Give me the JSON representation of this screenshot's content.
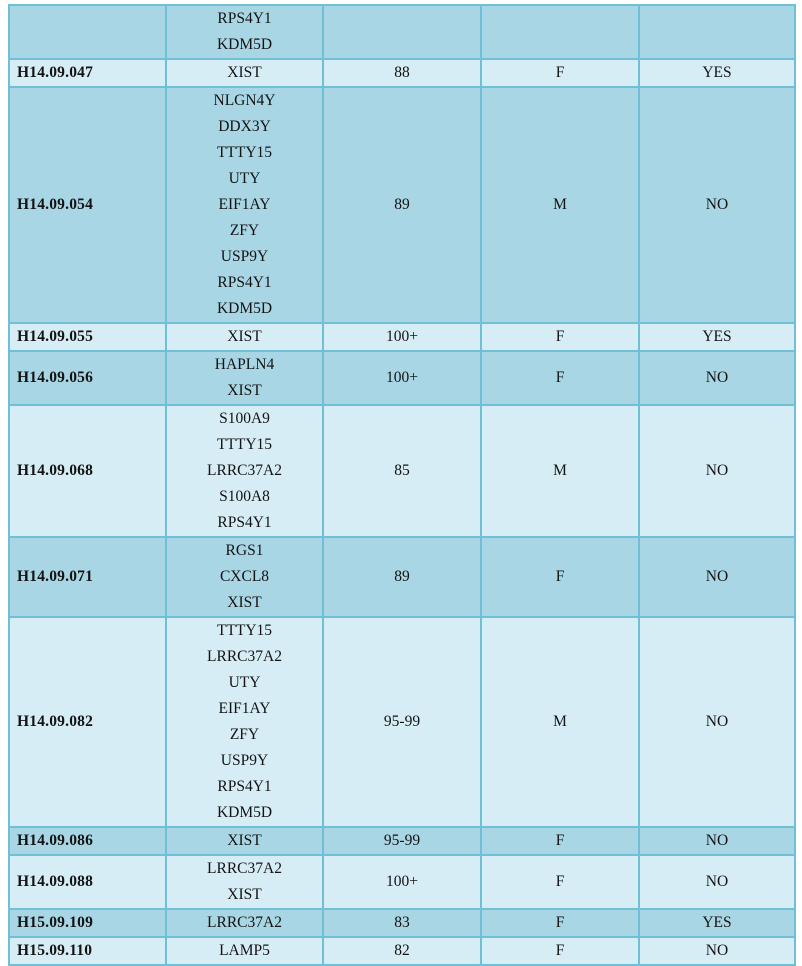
{
  "colors": {
    "row_dark": "#a9d6e4",
    "row_light": "#d6edf5",
    "border": "#6fc0d6",
    "text": "#131313"
  },
  "table": {
    "rows": [
      {
        "id": "",
        "genes": [
          "RPS4Y1",
          "KDM5D"
        ],
        "value": "",
        "sex": "",
        "status": "",
        "shade": "dark",
        "partial": "top"
      },
      {
        "id": "H14.09.047",
        "genes": [
          "XIST"
        ],
        "value": "88",
        "sex": "F",
        "status": "YES",
        "shade": "light"
      },
      {
        "id": "H14.09.054",
        "genes": [
          "NLGN4Y",
          "DDX3Y",
          "TTTY15",
          "UTY",
          "EIF1AY",
          "ZFY",
          "USP9Y",
          "RPS4Y1",
          "KDM5D"
        ],
        "value": "89",
        "sex": "M",
        "status": "NO",
        "shade": "dark"
      },
      {
        "id": "H14.09.055",
        "genes": [
          "XIST"
        ],
        "value": "100+",
        "sex": "F",
        "status": "YES",
        "shade": "light"
      },
      {
        "id": "H14.09.056",
        "genes": [
          "HAPLN4",
          "XIST"
        ],
        "value": "100+",
        "sex": "F",
        "status": "NO",
        "shade": "dark"
      },
      {
        "id": "H14.09.068",
        "genes": [
          "S100A9",
          "TTTY15",
          "LRRC37A2",
          "S100A8",
          "RPS4Y1"
        ],
        "value": "85",
        "sex": "M",
        "status": "NO",
        "shade": "light"
      },
      {
        "id": "H14.09.071",
        "genes": [
          "RGS1",
          "CXCL8",
          "XIST"
        ],
        "value": "89",
        "sex": "F",
        "status": "NO",
        "shade": "dark"
      },
      {
        "id": "H14.09.082",
        "genes": [
          "TTTY15",
          "LRRC37A2",
          "UTY",
          "EIF1AY",
          "ZFY",
          "USP9Y",
          "RPS4Y1",
          "KDM5D"
        ],
        "value": "95-99",
        "sex": "M",
        "status": "NO",
        "shade": "light"
      },
      {
        "id": "H14.09.086",
        "genes": [
          "XIST"
        ],
        "value": "95-99",
        "sex": "F",
        "status": "NO",
        "shade": "dark"
      },
      {
        "id": "H14.09.088",
        "genes": [
          "LRRC37A2",
          "XIST"
        ],
        "value": "100+",
        "sex": "F",
        "status": "NO",
        "shade": "light"
      },
      {
        "id": "H15.09.109",
        "genes": [
          "LRRC37A2"
        ],
        "value": "83",
        "sex": "F",
        "status": "YES",
        "shade": "dark"
      },
      {
        "id": "H15.09.110",
        "genes": [
          "LAMP5"
        ],
        "value": "82",
        "sex": "F",
        "status": "NO",
        "shade": "light"
      },
      {
        "id": "",
        "genes": [],
        "value": "",
        "sex": "",
        "status": "",
        "shade": "dark",
        "partial": "bottom"
      }
    ]
  }
}
